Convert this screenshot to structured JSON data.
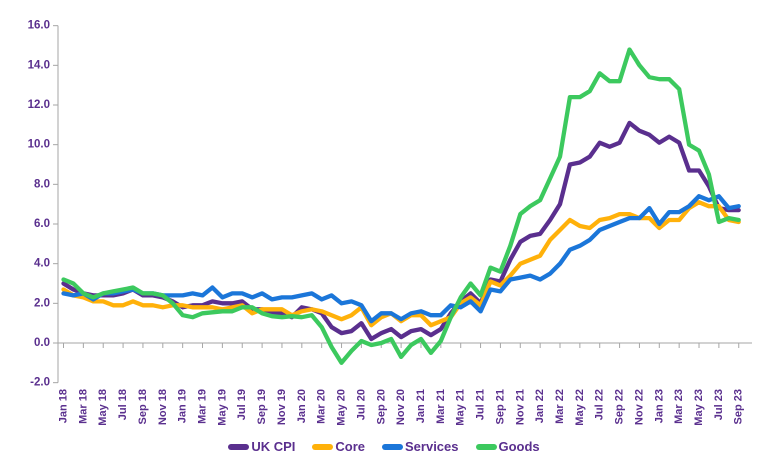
{
  "chart_data": {
    "type": "line",
    "title": "",
    "x_unit": "month",
    "x_range": [
      "Jan 2018",
      "Sep 2023"
    ],
    "points_per_series": 69,
    "x_label_every_n_months": 2,
    "x_label_rotation_degrees": 90,
    "x_tick_labels": [
      "Jan 18",
      "Mar 18",
      "May 18",
      "Jul 18",
      "Sep 18",
      "Nov 18",
      "Jan 19",
      "Mar 19",
      "May 19",
      "Jul 19",
      "Sep 19",
      "Nov 19",
      "Jan 20",
      "Mar 20",
      "May 20",
      "Jul 20",
      "Sep 20",
      "Nov 20",
      "Jan 21",
      "Mar 21",
      "May 21",
      "Jul 21",
      "Sep 21",
      "Nov 21",
      "Jan 22",
      "Mar 22",
      "May 22",
      "Jul 22",
      "Sep 22",
      "Nov 22",
      "Jan 23",
      "Mar 23",
      "May 23",
      "Jul 23",
      "Sep 23"
    ],
    "y_axis": {
      "min": -2.0,
      "max": 16.0,
      "step": 2.0,
      "tick_labels": [
        "16.0",
        "14.0",
        "12.0",
        "10.0",
        "8.0",
        "6.0",
        "4.0",
        "2.0",
        "0.0",
        "-2.0"
      ]
    },
    "grid": "none",
    "legend_position": "bottom",
    "series": [
      {
        "name": "UK CPI",
        "color": "#5a2f8e",
        "values": [
          3.0,
          2.7,
          2.5,
          2.4,
          2.4,
          2.4,
          2.5,
          2.7,
          2.4,
          2.4,
          2.3,
          2.1,
          1.8,
          1.9,
          1.9,
          2.1,
          2.0,
          2.0,
          2.1,
          1.7,
          1.7,
          1.5,
          1.5,
          1.3,
          1.8,
          1.7,
          1.5,
          0.8,
          0.5,
          0.6,
          1.0,
          0.2,
          0.5,
          0.7,
          0.3,
          0.6,
          0.7,
          0.4,
          0.7,
          1.5,
          2.1,
          2.5,
          2.0,
          3.2,
          3.1,
          4.2,
          5.1,
          5.4,
          5.5,
          6.2,
          7.0,
          9.0,
          9.1,
          9.4,
          10.1,
          9.9,
          10.1,
          11.1,
          10.7,
          10.5,
          10.1,
          10.4,
          10.1,
          8.7,
          8.7,
          7.9,
          6.8,
          6.7,
          6.7
        ]
      },
      {
        "name": "Core",
        "color": "#ffb10a",
        "values": [
          2.7,
          2.4,
          2.3,
          2.1,
          2.1,
          1.9,
          1.9,
          2.1,
          1.9,
          1.9,
          1.8,
          1.9,
          1.9,
          1.8,
          1.8,
          1.8,
          1.7,
          1.8,
          1.9,
          1.5,
          1.7,
          1.7,
          1.7,
          1.4,
          1.6,
          1.7,
          1.6,
          1.4,
          1.2,
          1.4,
          1.8,
          0.9,
          1.3,
          1.5,
          1.1,
          1.4,
          1.4,
          0.9,
          1.1,
          1.3,
          2.0,
          2.3,
          1.9,
          3.1,
          2.9,
          3.4,
          4.0,
          4.2,
          4.4,
          5.2,
          5.7,
          6.2,
          5.9,
          5.8,
          6.2,
          6.3,
          6.5,
          6.5,
          6.3,
          6.3,
          5.8,
          6.2,
          6.2,
          6.8,
          7.1,
          6.9,
          6.9,
          6.2,
          6.1
        ]
      },
      {
        "name": "Services",
        "color": "#1b76d9",
        "values": [
          2.5,
          2.4,
          2.5,
          2.2,
          2.5,
          2.5,
          2.6,
          2.7,
          2.5,
          2.5,
          2.4,
          2.4,
          2.4,
          2.5,
          2.4,
          2.8,
          2.3,
          2.5,
          2.5,
          2.3,
          2.5,
          2.2,
          2.3,
          2.3,
          2.4,
          2.5,
          2.2,
          2.4,
          2.0,
          2.1,
          1.9,
          1.1,
          1.5,
          1.5,
          1.2,
          1.5,
          1.6,
          1.4,
          1.4,
          1.9,
          1.8,
          2.1,
          1.6,
          2.7,
          2.6,
          3.2,
          3.3,
          3.4,
          3.2,
          3.5,
          4.0,
          4.7,
          4.9,
          5.2,
          5.7,
          5.9,
          6.1,
          6.3,
          6.3,
          6.8,
          6.0,
          6.6,
          6.6,
          6.9,
          7.4,
          7.2,
          7.4,
          6.8,
          6.9
        ]
      },
      {
        "name": "Goods",
        "color": "#3cc95e",
        "values": [
          3.2,
          3.0,
          2.5,
          2.3,
          2.5,
          2.6,
          2.7,
          2.8,
          2.5,
          2.5,
          2.4,
          2.0,
          1.4,
          1.3,
          1.5,
          1.55,
          1.6,
          1.6,
          1.8,
          1.8,
          1.5,
          1.35,
          1.3,
          1.35,
          1.3,
          1.4,
          0.8,
          -0.2,
          -1.0,
          -0.4,
          0.1,
          -0.1,
          0.0,
          0.2,
          -0.7,
          -0.1,
          0.2,
          -0.5,
          0.1,
          1.3,
          2.3,
          3.0,
          2.4,
          3.8,
          3.6,
          4.9,
          6.5,
          6.9,
          7.2,
          8.3,
          9.4,
          12.4,
          12.4,
          12.7,
          13.6,
          13.2,
          13.2,
          14.8,
          14.0,
          13.4,
          13.3,
          13.3,
          12.8,
          10.0,
          9.7,
          8.5,
          6.1,
          6.3,
          6.2
        ]
      }
    ],
    "colors": {
      "axis": "#a6a6a6",
      "labels": "#5a2f8e",
      "background": "#ffffff"
    }
  }
}
